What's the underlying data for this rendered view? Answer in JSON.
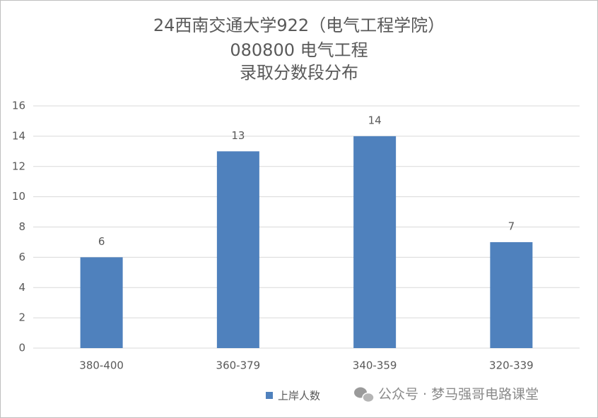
{
  "chart_data": {
    "type": "bar",
    "title": [
      "24西南交通大学922（电气工程学院）",
      "080800 电气工程",
      "录取分数段分布"
    ],
    "categories": [
      "380-400",
      "360-379",
      "340-359",
      "320-339"
    ],
    "series": [
      {
        "name": "上岸人数",
        "color": "#4f81bd",
        "values": [
          6,
          13,
          14,
          7
        ]
      }
    ],
    "ylim": [
      0,
      16
    ],
    "yticks": [
      0,
      2,
      4,
      6,
      8,
      10,
      12,
      14,
      16
    ],
    "grid": true,
    "legend": "bottom"
  },
  "watermark": "公众号 · 梦马强哥电路课堂"
}
